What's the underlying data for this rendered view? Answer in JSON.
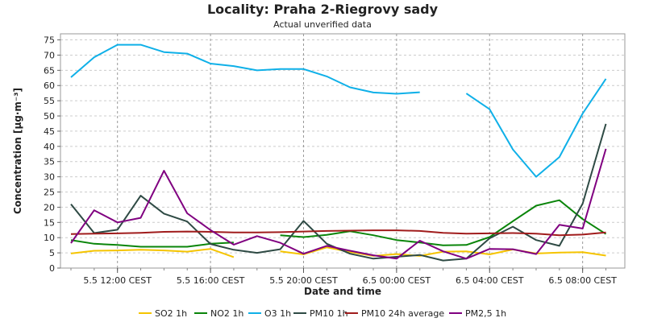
{
  "chart_data": {
    "type": "line",
    "title": "Locality: Praha 2-Riegrovy sady",
    "subtitle": "Actual unverified data",
    "xlabel": "Date and time",
    "ylabel": "Concentration [µg·m⁻³]",
    "ylim": [
      0,
      77
    ],
    "yticks": [
      0,
      5,
      10,
      15,
      20,
      25,
      30,
      35,
      40,
      45,
      50,
      55,
      60,
      65,
      70,
      75
    ],
    "x": [
      "5.5 10:00",
      "5.5 11:00",
      "5.5 12:00",
      "5.5 13:00",
      "5.5 14:00",
      "5.5 15:00",
      "5.5 16:00",
      "5.5 17:00",
      "5.5 18:00",
      "5.5 19:00",
      "5.5 20:00",
      "5.5 21:00",
      "5.5 22:00",
      "5.5 23:00",
      "6.5 00:00",
      "6.5 01:00",
      "6.5 02:00",
      "6.5 03:00",
      "6.5 04:00",
      "6.5 05:00",
      "6.5 06:00",
      "6.5 07:00",
      "6.5 08:00",
      "6.5 09:00"
    ],
    "xtick_labels": [
      {
        "index": 2,
        "label": "5.5 12:00 CEST"
      },
      {
        "index": 6,
        "label": "5.5 16:00 CEST"
      },
      {
        "index": 10,
        "label": "5.5 20:00 CEST"
      },
      {
        "index": 14,
        "label": "6.5 00:00 CEST"
      },
      {
        "index": 18,
        "label": "6.5 04:00 CEST"
      },
      {
        "index": 22,
        "label": "6.5 08:00 CEST"
      }
    ],
    "grid": true,
    "legend_position": "bottom",
    "series": [
      {
        "name": "SO2 1h",
        "color": "#f5c400",
        "values": [
          4.8,
          5.7,
          5.8,
          6.0,
          5.8,
          5.4,
          6.3,
          3.6,
          null,
          5.5,
          4.5,
          6.8,
          5.3,
          4.0,
          4.6,
          4.0,
          5.4,
          5.5,
          4.5,
          6.1,
          4.8,
          5.1,
          5.2,
          4.1
        ]
      },
      {
        "name": "NO2 1h",
        "color": "#0a850a",
        "values": [
          9.2,
          8.0,
          7.6,
          7.0,
          7.0,
          7.0,
          8.0,
          8.4,
          null,
          10.8,
          10.2,
          10.9,
          12.1,
          10.8,
          9.2,
          8.4,
          7.5,
          7.6,
          10.2,
          15.4,
          20.5,
          22.3,
          16.1,
          11.2
        ]
      },
      {
        "name": "O3 1h",
        "color": "#0fb0e8",
        "values": [
          62.7,
          69.3,
          73.4,
          73.4,
          71.0,
          70.5,
          67.2,
          66.4,
          65.0,
          65.4,
          65.4,
          63.0,
          59.4,
          57.7,
          57.3,
          57.8,
          null,
          57.4,
          52.2,
          39.0,
          30.0,
          36.5,
          50.8,
          62.2
        ]
      },
      {
        "name": "PM10 1h",
        "color": "#2e4a44",
        "values": [
          21.0,
          11.5,
          12.6,
          23.8,
          17.9,
          15.3,
          7.9,
          6.0,
          5.0,
          6.2,
          15.5,
          8.0,
          4.7,
          3.1,
          3.7,
          4.3,
          2.5,
          3.1,
          9.8,
          13.6,
          9.2,
          7.3,
          21.2,
          47.4
        ]
      },
      {
        "name": "PM10 24h average",
        "color": "#a01c1c",
        "values": [
          11.2,
          11.3,
          11.4,
          11.6,
          11.9,
          12.0,
          11.9,
          11.7,
          11.7,
          11.8,
          12.0,
          12.2,
          12.3,
          12.4,
          12.4,
          12.2,
          11.6,
          11.3,
          11.4,
          11.5,
          11.3,
          10.8,
          11.0,
          11.7
        ]
      },
      {
        "name": "PM2,5 1h",
        "color": "#800080",
        "values": [
          8.2,
          19.0,
          15.0,
          16.5,
          32.0,
          18.0,
          12.5,
          7.7,
          10.5,
          8.3,
          4.7,
          7.3,
          5.7,
          4.2,
          3.1,
          9.0,
          5.5,
          3.1,
          6.3,
          6.2,
          4.6,
          14.2,
          13.0,
          39.2
        ]
      }
    ]
  }
}
